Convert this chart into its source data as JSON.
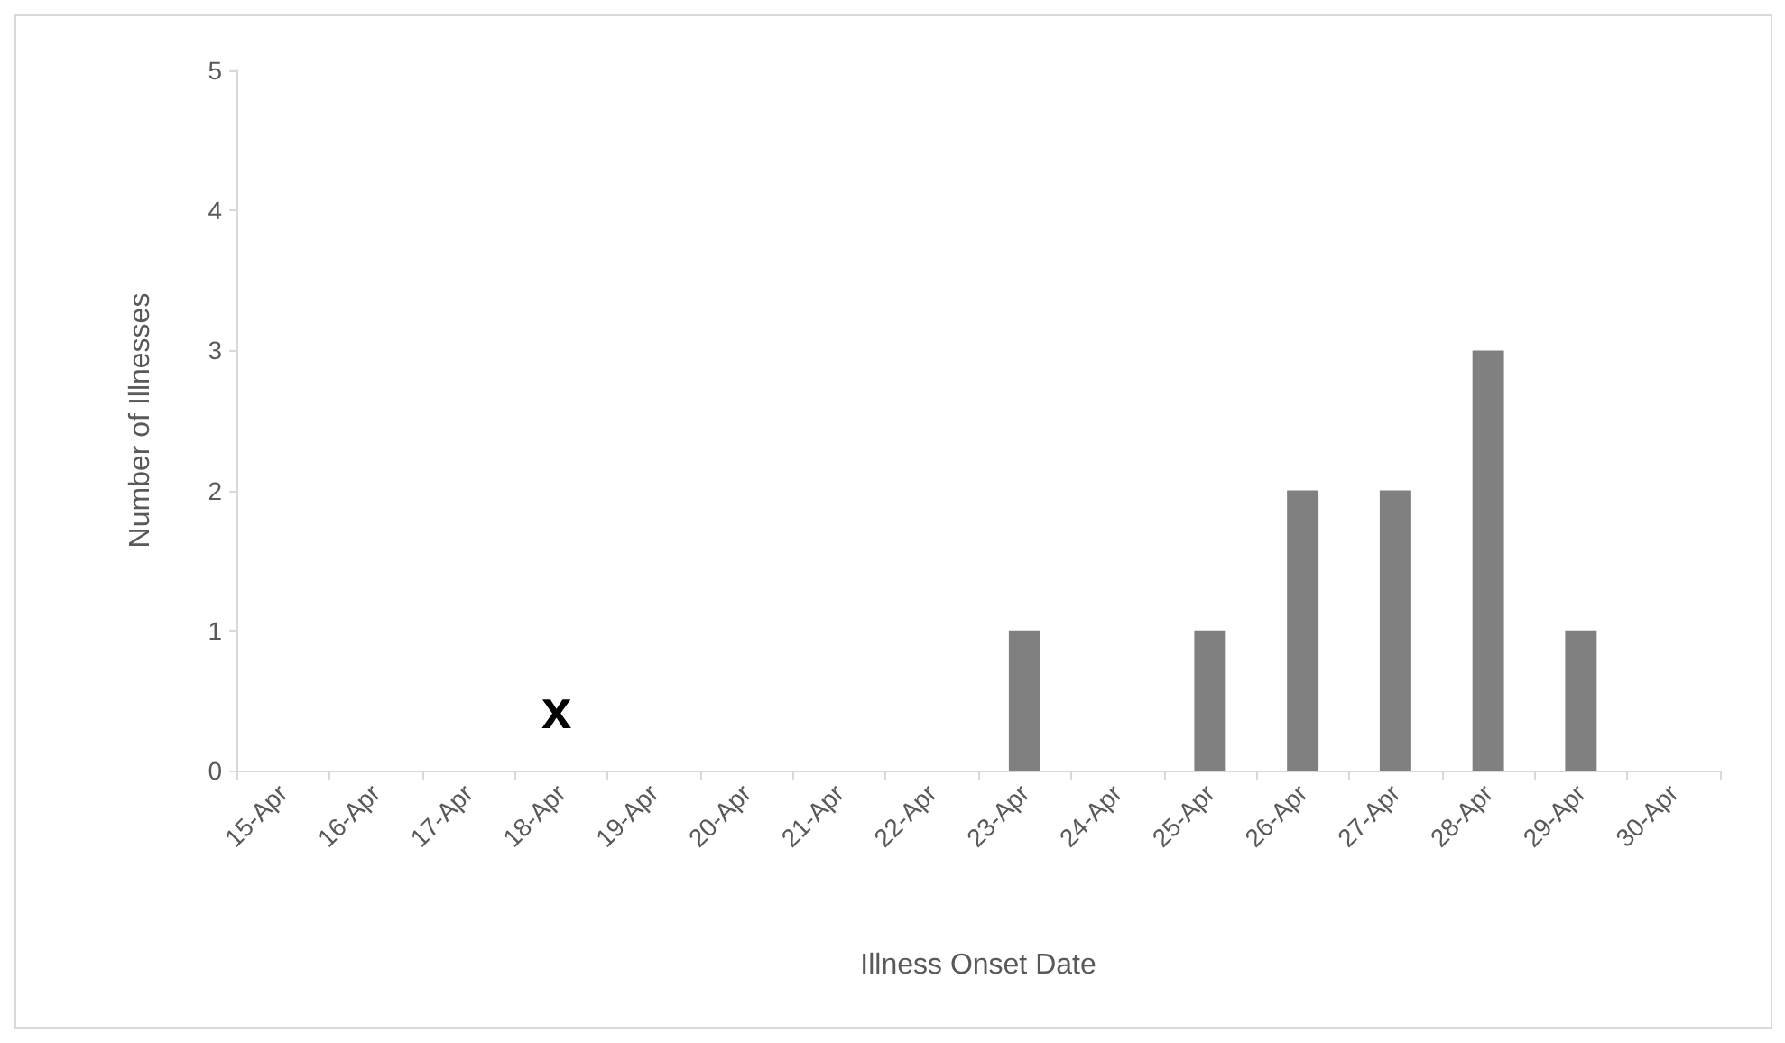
{
  "chart_data": {
    "type": "bar",
    "xlabel": "Illness Onset Date",
    "ylabel": "Number of Illnesses",
    "categories": [
      "15-Apr",
      "16-Apr",
      "17-Apr",
      "18-Apr",
      "19-Apr",
      "20-Apr",
      "21-Apr",
      "22-Apr",
      "23-Apr",
      "24-Apr",
      "25-Apr",
      "26-Apr",
      "27-Apr",
      "28-Apr",
      "29-Apr",
      "30-Apr"
    ],
    "values": [
      0,
      0,
      0,
      0,
      0,
      0,
      0,
      0,
      1,
      0,
      1,
      2,
      2,
      3,
      1,
      0
    ],
    "color": "#808080",
    "ylim": [
      0,
      5
    ],
    "yticks": [
      0,
      1,
      2,
      3,
      4,
      5
    ],
    "grid": false,
    "annotations": [
      "x"
    ]
  }
}
